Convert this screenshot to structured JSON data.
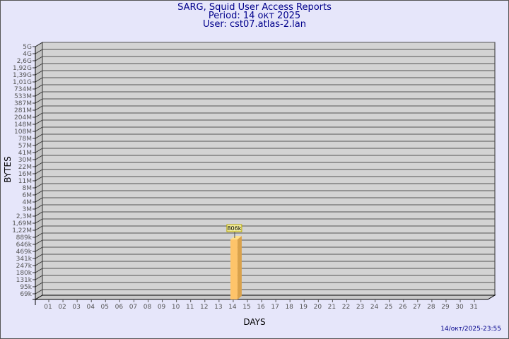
{
  "chart_data": {
    "type": "bar",
    "title": "SARG, Squid User Access Reports",
    "subtitle_period": "Period: 14 окт 2025",
    "subtitle_user": "User: cst07.atlas-2.lan",
    "xlabel": "DAYS",
    "ylabel": "BYTES",
    "yscale": "log",
    "grid": true,
    "y_tick_labels": [
      "5G",
      "4G",
      "2,6G",
      "1,92G",
      "1,39G",
      "1,01G",
      "734M",
      "533M",
      "387M",
      "281M",
      "204M",
      "148M",
      "108M",
      "78M",
      "57M",
      "41M",
      "30M",
      "22M",
      "16M",
      "11M",
      "8M",
      "6M",
      "4M",
      "3M",
      "2,3M",
      "1,69M",
      "1,22M",
      "889k",
      "646k",
      "469k",
      "341k",
      "247k",
      "180k",
      "131k",
      "95k",
      "69k"
    ],
    "categories": [
      "01",
      "02",
      "03",
      "04",
      "05",
      "06",
      "07",
      "08",
      "09",
      "10",
      "11",
      "12",
      "13",
      "14",
      "15",
      "16",
      "17",
      "18",
      "19",
      "20",
      "21",
      "22",
      "23",
      "24",
      "25",
      "26",
      "27",
      "28",
      "29",
      "30",
      "31"
    ],
    "bars": [
      {
        "day": "14",
        "value": 806000,
        "label": "806k"
      }
    ],
    "colors": {
      "bar_front": "#fec46a",
      "bar_side": "#daa24b",
      "bar_top": "#ffe08a",
      "wall": "#d3d3d3",
      "title": "#00008b"
    }
  },
  "footer_timestamp": "14/окт/2025-23:55"
}
